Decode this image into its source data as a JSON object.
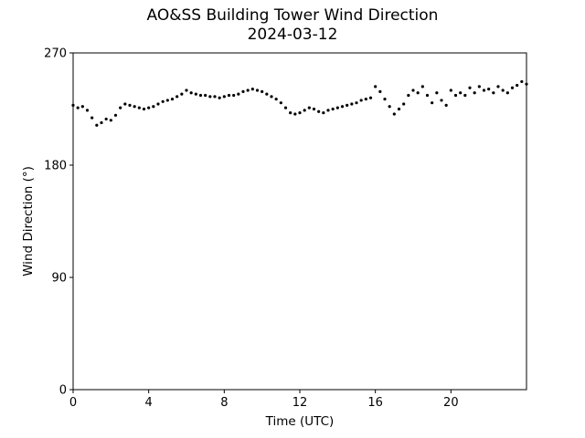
{
  "chart_data": {
    "type": "scatter",
    "title": "AO&SS Building Tower Wind Direction",
    "subtitle": "2024-03-12",
    "xlabel": "Time (UTC)",
    "ylabel": "Wind Direction (°)",
    "xlim": [
      0,
      24
    ],
    "ylim": [
      0,
      270
    ],
    "xticks": [
      0,
      4,
      8,
      12,
      16,
      20
    ],
    "xtick_labels": [
      "0",
      "4",
      "8",
      "12",
      "16",
      "20"
    ],
    "yticks": [
      0,
      90,
      180,
      270
    ],
    "ytick_labels": [
      "0",
      "90",
      "180",
      "270"
    ],
    "grid": false,
    "marker_color": "#000000",
    "series": [
      {
        "x": [
          0.0,
          0.25,
          0.5,
          0.75,
          1.0,
          1.25,
          1.5,
          1.75,
          2.0,
          2.25,
          2.5,
          2.75,
          3.0,
          3.25,
          3.5,
          3.75,
          4.0,
          4.25,
          4.5,
          4.75,
          5.0,
          5.25,
          5.5,
          5.75,
          6.0,
          6.25,
          6.5,
          6.75,
          7.0,
          7.25,
          7.5,
          7.75,
          8.0,
          8.25,
          8.5,
          8.75,
          9.0,
          9.25,
          9.5,
          9.75,
          10.0,
          10.25,
          10.5,
          10.75,
          11.0,
          11.25,
          11.5,
          11.75,
          12.0,
          12.25,
          12.5,
          12.75,
          13.0,
          13.25,
          13.5,
          13.75,
          14.0,
          14.25,
          14.5,
          14.75,
          15.0,
          15.25,
          15.5,
          15.75,
          16.0,
          16.25,
          16.5,
          16.75,
          17.0,
          17.25,
          17.5,
          17.75,
          18.0,
          18.25,
          18.5,
          18.75,
          19.0,
          19.25,
          19.5,
          19.75,
          20.0,
          20.25,
          20.5,
          20.75,
          21.0,
          21.25,
          21.5,
          21.75,
          22.0,
          22.25,
          22.5,
          22.75,
          23.0,
          23.25,
          23.5,
          23.75,
          24.0
        ],
        "y": [
          228,
          226,
          227,
          224,
          218,
          212,
          214,
          217,
          216,
          220,
          226,
          229,
          228,
          227,
          226,
          225,
          226,
          227,
          229,
          231,
          232,
          233,
          235,
          237,
          240,
          238,
          237,
          236,
          236,
          235,
          235,
          234,
          235,
          236,
          236,
          237,
          239,
          240,
          241,
          240,
          239,
          237,
          235,
          233,
          230,
          226,
          222,
          221,
          222,
          224,
          226,
          225,
          223,
          222,
          224,
          225,
          226,
          227,
          228,
          229,
          230,
          232,
          233,
          234,
          243,
          239,
          233,
          227,
          221,
          225,
          229,
          236,
          240,
          238,
          243,
          236,
          230,
          238,
          232,
          228,
          240,
          236,
          238,
          236,
          242,
          238,
          243,
          240,
          241,
          238,
          243,
          240,
          238,
          242,
          244,
          247,
          245
        ]
      }
    ]
  }
}
